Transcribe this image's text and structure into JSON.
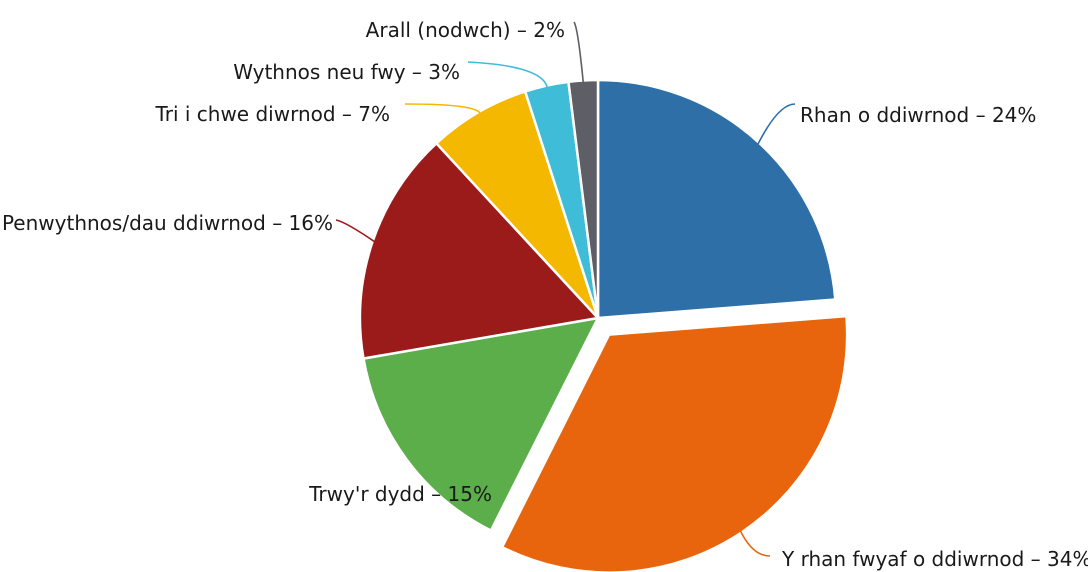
{
  "chart_data": {
    "type": "pie",
    "title": "",
    "legend": "none",
    "slices": [
      {
        "label": "Rhan o ddiwrnod – 24%",
        "value": 24,
        "color": "#2e6fa7"
      },
      {
        "label": "Y rhan fwyaf o ddiwrnod – 34%",
        "value": 34,
        "color": "#e8650d",
        "exploded": true
      },
      {
        "label": "Trwy'r dydd – 15%",
        "value": 15,
        "color": "#5bae4a"
      },
      {
        "label": "Penwythnos/dau ddiwrnod – 16%",
        "value": 16,
        "color": "#9b1b1b"
      },
      {
        "label": "Tri i chwe diwrnod – 7%",
        "value": 7,
        "color": "#f5b800"
      },
      {
        "label": "Wythnos neu fwy – 3%",
        "value": 3,
        "color": "#3fbcd8"
      },
      {
        "label": "Arall (nodwch) – 2%",
        "value": 2,
        "color": "#5e5f66"
      }
    ]
  }
}
